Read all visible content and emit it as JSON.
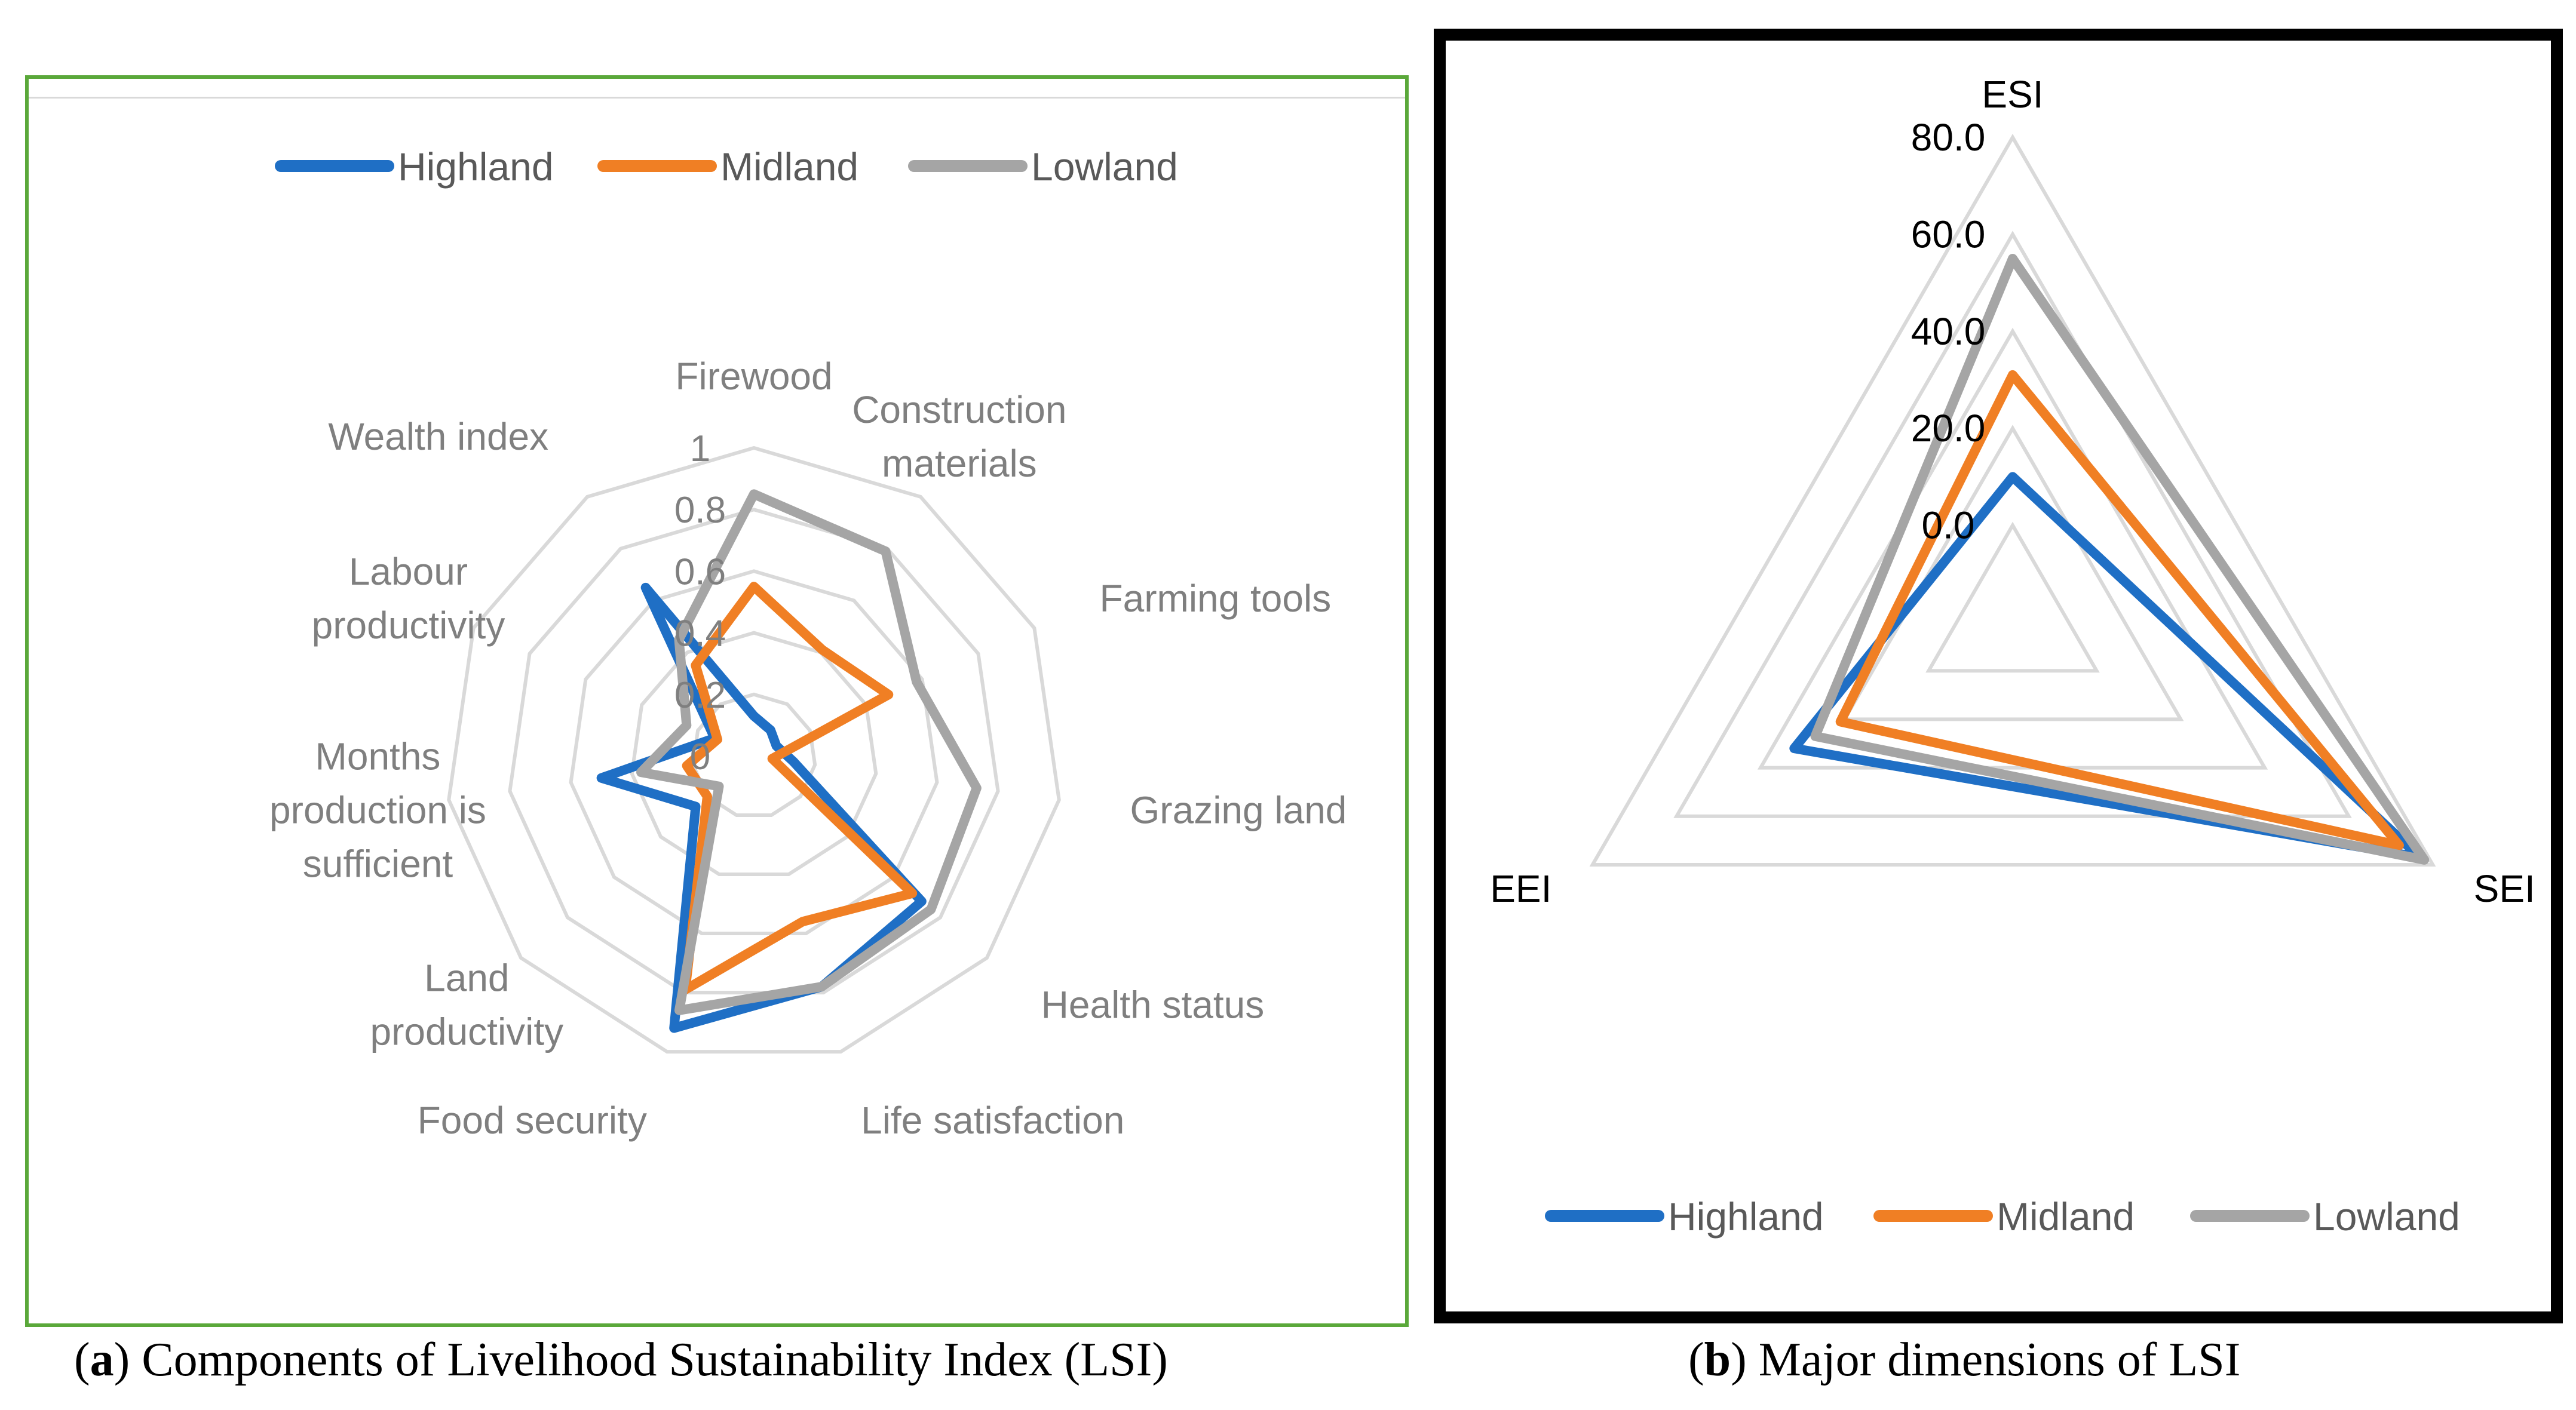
{
  "colors": {
    "highland": "#1f6fc5",
    "midland": "#f07f24",
    "lowland": "#a5a5a5",
    "grid": "#d9d9d9",
    "label": "#7f7f7f",
    "panel_a_border": "#5aa83a"
  },
  "chart_data": [
    {
      "type": "radar",
      "panel": "a",
      "caption_letter": "a",
      "caption_text": "Components of Livelihood Sustainability Index (LSI)",
      "legend_position": "top",
      "axes": [
        [
          "Firewood"
        ],
        [
          "Construction",
          "materials"
        ],
        [
          "Farming tools"
        ],
        [
          "Grazing land"
        ],
        [
          "Health status"
        ],
        [
          "Life satisfaction"
        ],
        [
          "Food security"
        ],
        [
          "Land",
          "productivity"
        ],
        [
          "Months",
          "production is",
          "sufficient"
        ],
        [
          "Labour",
          "productivity"
        ],
        [
          "Wealth index"
        ]
      ],
      "range": [
        0,
        1
      ],
      "ticks": [
        "0",
        "0.2",
        "0.4",
        "0.6",
        "0.8",
        "1"
      ],
      "tick_values": [
        0,
        0.2,
        0.4,
        0.6,
        0.8,
        1
      ],
      "series": [
        {
          "name": "Highland",
          "color": "#1f6fc5",
          "values": [
            0.13,
            0.1,
            0.08,
            0.13,
            0.72,
            0.78,
            0.92,
            0.25,
            0.5,
            0.14,
            0.65
          ]
        },
        {
          "name": "Midland",
          "color": "#f07f24",
          "values": [
            0.55,
            0.41,
            0.48,
            0.06,
            0.68,
            0.56,
            0.79,
            0.2,
            0.22,
            0.13,
            0.35
          ]
        },
        {
          "name": "Lowland",
          "color": "#a5a5a5",
          "values": [
            0.85,
            0.79,
            0.58,
            0.73,
            0.76,
            0.78,
            0.86,
            0.15,
            0.37,
            0.24,
            0.45
          ]
        }
      ]
    },
    {
      "type": "radar",
      "panel": "b",
      "caption_letter": "b",
      "caption_text": "Major dimensions of LSI",
      "legend_position": "bottom",
      "axes": [
        "ESI",
        "SEI",
        "EEI"
      ],
      "range": [
        -20,
        80
      ],
      "ticks": [
        "0.0",
        "20.0",
        "40.0",
        "60.0",
        "80.0"
      ],
      "tick_values": [
        0,
        20,
        40,
        60,
        80
      ],
      "series": [
        {
          "name": "Highland",
          "color": "#1f6fc5",
          "values": [
            10,
            77,
            32
          ]
        },
        {
          "name": "Midland",
          "color": "#f07f24",
          "values": [
            31,
            72,
            21
          ]
        },
        {
          "name": "Lowland",
          "color": "#a5a5a5",
          "values": [
            55,
            78,
            27
          ]
        }
      ]
    }
  ]
}
